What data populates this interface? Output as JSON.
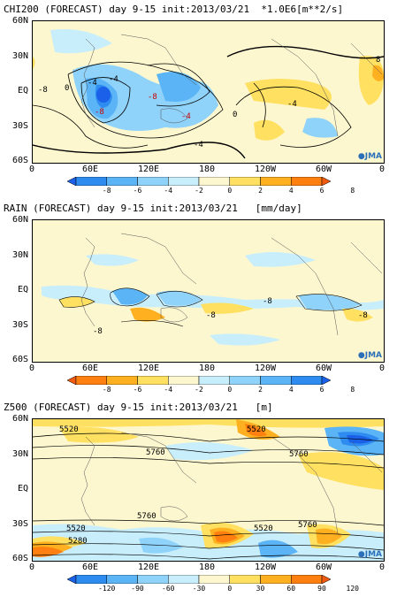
{
  "panels": [
    {
      "title": "CHI200 (FORECAST) day 9-15 init:2013/03/21  *1.0E6[m**2/s]",
      "lat_labels": [
        "60N",
        "30N",
        "EQ",
        "30S",
        "60S"
      ],
      "lon_labels": [
        "0",
        "60E",
        "120E",
        "180",
        "120W",
        "60W",
        "0"
      ],
      "contour_labels": [
        "-4",
        "-8",
        "-8",
        "-4",
        "0",
        "-4",
        "0",
        "-4",
        "8",
        "-8",
        "-4"
      ],
      "colorbar": {
        "labels": [
          "-8",
          "-6",
          "-4",
          "-2",
          "0",
          "2",
          "4",
          "6",
          "8"
        ],
        "colors": [
          "#1a60e8",
          "#2e8cf0",
          "#5ab4f6",
          "#8fd2fa",
          "#c8eefb",
          "#fdf7cf",
          "#ffe060",
          "#ffb020",
          "#ff8010",
          "#f05a10"
        ]
      },
      "logo": "JMA"
    },
    {
      "title": "RAIN (FORECAST) day 9-15 init:2013/03/21   [mm/day]",
      "lat_labels": [
        "60N",
        "30N",
        "EQ",
        "30S",
        "60S"
      ],
      "lon_labels": [
        "0",
        "60E",
        "120E",
        "180",
        "120W",
        "60W",
        "0"
      ],
      "contour_labels": [
        "-8",
        "-8",
        "-8",
        "-8"
      ],
      "colorbar": {
        "labels": [
          "-8",
          "-6",
          "-4",
          "-2",
          "0",
          "2",
          "4",
          "6",
          "8"
        ],
        "colors": [
          "#f05a10",
          "#ff8010",
          "#ffb020",
          "#ffe060",
          "#fdf7cf",
          "#c8eefb",
          "#8fd2fa",
          "#5ab4f6",
          "#2e8cf0",
          "#1a60e8"
        ]
      },
      "logo": "JMA"
    },
    {
      "title": "Z500 (FORECAST) day 9-15 init:2013/03/21   [m]",
      "lat_labels": [
        "60N",
        "30N",
        "EQ",
        "30S",
        "60S"
      ],
      "lon_labels": [
        "0",
        "60E",
        "120E",
        "180",
        "120W",
        "60W",
        "0"
      ],
      "contour_labels": [
        "5520",
        "5520",
        "5760",
        "5760",
        "5760",
        "5520",
        "5520",
        "5280",
        "5760"
      ],
      "colorbar": {
        "labels": [
          "-120",
          "-90",
          "-60",
          "-30",
          "0",
          "30",
          "60",
          "90",
          "120"
        ],
        "colors": [
          "#1a60e8",
          "#2e8cf0",
          "#5ab4f6",
          "#8fd2fa",
          "#c8eefb",
          "#fdf7cf",
          "#ffe060",
          "#ffb020",
          "#ff8010",
          "#f05a10"
        ]
      },
      "logo": "JMA"
    }
  ]
}
